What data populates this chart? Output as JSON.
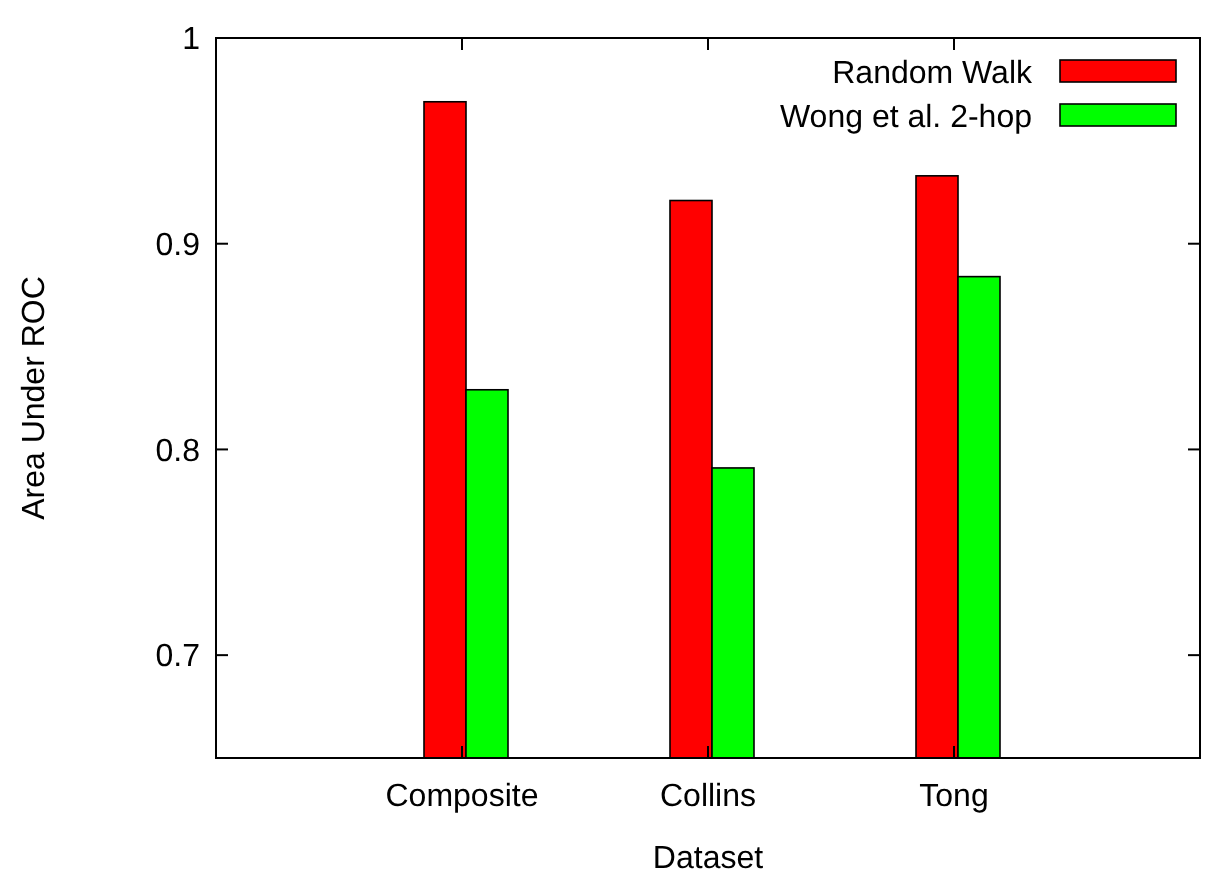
{
  "chart_data": {
    "type": "bar",
    "xlabel": "Dataset",
    "ylabel": "Area Under ROC",
    "categories": [
      "Composite",
      "Collins",
      "Tong"
    ],
    "series": [
      {
        "name": "Random Walk",
        "color": "#ff0000",
        "values": [
          0.969,
          0.921,
          0.933
        ]
      },
      {
        "name": "Wong et al. 2-hop",
        "color": "#00ff00",
        "values": [
          0.829,
          0.791,
          0.884
        ]
      }
    ],
    "ylim": [
      0.65,
      1
    ],
    "yticks": [
      {
        "value": 0.7,
        "label": "0.7"
      },
      {
        "value": 0.8,
        "label": "0.8"
      },
      {
        "value": 0.9,
        "label": "0.9"
      },
      {
        "value": 1,
        "label": "1"
      }
    ],
    "grid": false,
    "legend": "top right"
  }
}
